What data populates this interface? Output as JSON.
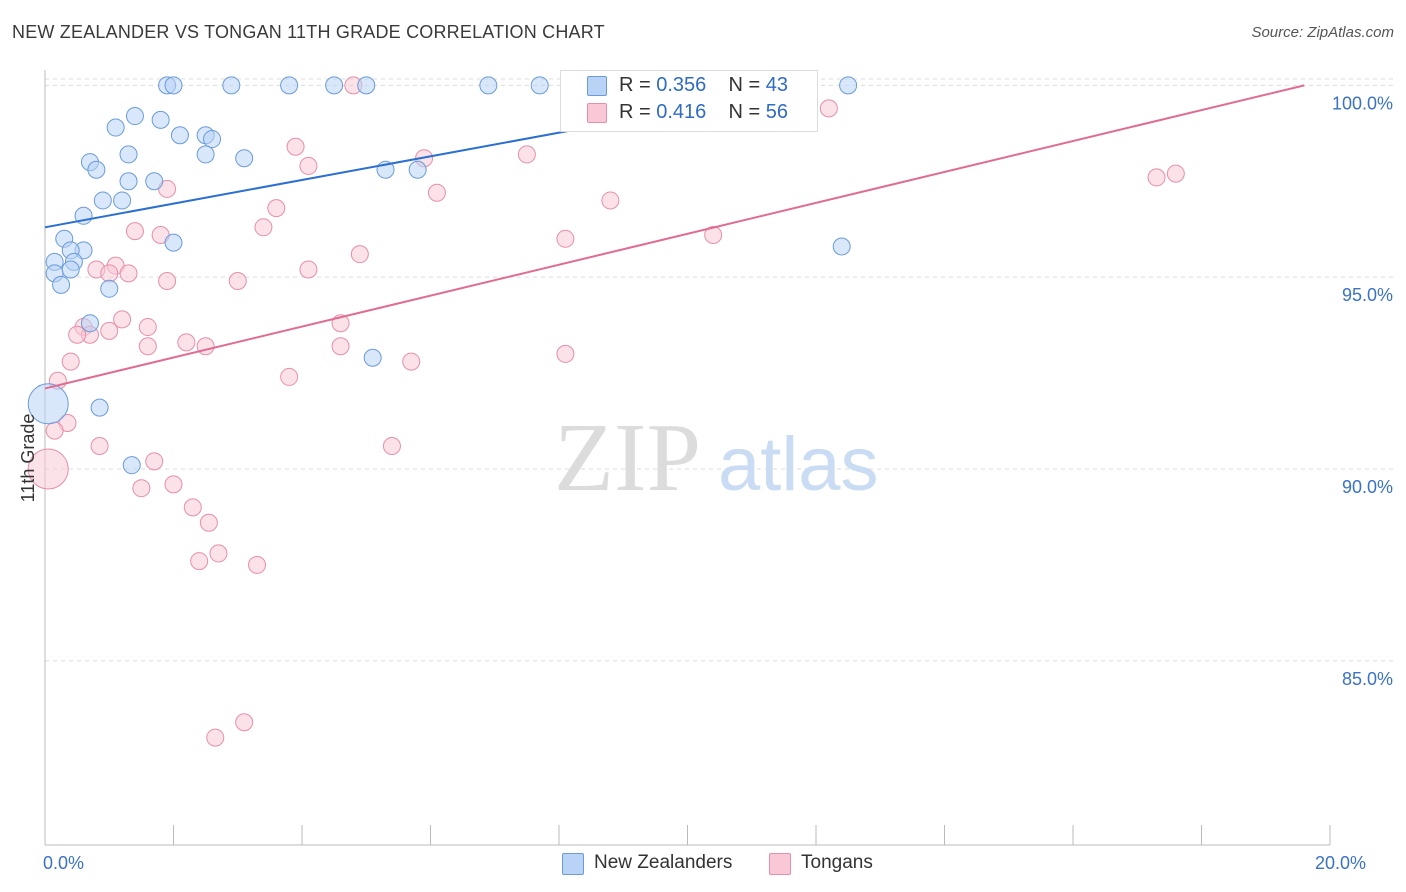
{
  "title": "NEW ZEALANDER VS TONGAN 11TH GRADE CORRELATION CHART",
  "source": "Source: ZipAtlas.com",
  "watermark": {
    "zip": "ZIP",
    "atlas": "atlas"
  },
  "legend": {
    "rows": [
      {
        "r_label": "R = ",
        "r_value": "0.356",
        "n_label": "N = ",
        "n_value": "43"
      },
      {
        "r_label": "R = ",
        "r_value": "0.416",
        "n_label": "N = ",
        "n_value": "56"
      }
    ]
  },
  "bottom_legend": {
    "blue": "New Zealanders",
    "pink": "Tongans"
  },
  "colors": {
    "blue_fill": "#b8d3f5",
    "blue_stroke": "#6b9bd8",
    "blue_line": "#2a6fd1",
    "pink_fill": "#f8c8d6",
    "pink_stroke": "#e68fa9",
    "pink_line": "#e06b93",
    "tick_label": "#3b72c4",
    "grid": "#dcdcdc"
  },
  "chart_data": {
    "type": "scatter",
    "title": "NEW ZEALANDER VS TONGAN 11TH GRADE CORRELATION CHART",
    "xlabel": "",
    "ylabel": "11th Grade",
    "xlim": [
      0,
      20
    ],
    "ylim": [
      80.2,
      100.4
    ],
    "x_tick_labels": [
      {
        "value": 0,
        "label": "0.0%"
      },
      {
        "value": 20,
        "label": "20.0%"
      }
    ],
    "y_tick_labels": [
      {
        "value": 100,
        "label": "100.0%"
      },
      {
        "value": 95,
        "label": "95.0%"
      },
      {
        "value": 90,
        "label": "90.0%"
      },
      {
        "value": 85,
        "label": "85.0%"
      }
    ],
    "series": [
      {
        "name": "New Zealanders",
        "color": "blue",
        "r": 0.356,
        "n": 43,
        "trend": {
          "x": [
            0,
            12.0
          ],
          "y": [
            96.3,
            100.0
          ]
        },
        "points": [
          [
            1.9,
            100
          ],
          [
            2.0,
            100
          ],
          [
            2.9,
            100
          ],
          [
            3.8,
            100
          ],
          [
            4.5,
            100
          ],
          [
            5.0,
            100
          ],
          [
            6.9,
            100
          ],
          [
            7.7,
            100
          ],
          [
            12.5,
            100
          ],
          [
            1.4,
            99.2
          ],
          [
            1.8,
            99.1
          ],
          [
            1.1,
            98.9
          ],
          [
            2.1,
            98.7
          ],
          [
            2.5,
            98.7
          ],
          [
            2.6,
            98.6
          ],
          [
            1.3,
            98.2
          ],
          [
            2.5,
            98.2
          ],
          [
            3.1,
            98.1
          ],
          [
            0.7,
            98.0
          ],
          [
            0.8,
            97.8
          ],
          [
            5.3,
            97.8
          ],
          [
            5.8,
            97.8
          ],
          [
            1.7,
            97.5
          ],
          [
            1.3,
            97.5
          ],
          [
            1.2,
            97.0
          ],
          [
            0.9,
            97.0
          ],
          [
            0.6,
            96.6
          ],
          [
            0.3,
            96.0
          ],
          [
            2.0,
            95.9
          ],
          [
            0.6,
            95.7
          ],
          [
            0.4,
            95.7
          ],
          [
            12.4,
            95.8
          ],
          [
            0.15,
            95.4
          ],
          [
            0.45,
            95.4
          ],
          [
            0.15,
            95.1
          ],
          [
            0.25,
            94.8
          ],
          [
            1.0,
            94.7
          ],
          [
            0.7,
            93.8
          ],
          [
            5.1,
            92.9
          ],
          [
            0.85,
            91.6
          ],
          [
            1.35,
            90.1
          ],
          [
            0.05,
            91.7
          ],
          [
            0.4,
            95.2
          ]
        ],
        "big_point": [
          0.05,
          91.7
        ]
      },
      {
        "name": "Tongans",
        "color": "pink",
        "r": 0.416,
        "n": 56,
        "trend": {
          "x": [
            0,
            19.6
          ],
          "y": [
            92.1,
            100.0
          ]
        },
        "points": [
          [
            4.8,
            100
          ],
          [
            12.2,
            99.4
          ],
          [
            3.9,
            98.4
          ],
          [
            7.5,
            98.2
          ],
          [
            5.9,
            98.1
          ],
          [
            4.1,
            97.9
          ],
          [
            1.9,
            97.3
          ],
          [
            6.1,
            97.2
          ],
          [
            17.6,
            97.7
          ],
          [
            17.3,
            97.6
          ],
          [
            8.8,
            97.0
          ],
          [
            3.6,
            96.8
          ],
          [
            3.4,
            96.3
          ],
          [
            1.4,
            96.2
          ],
          [
            1.8,
            96.1
          ],
          [
            8.1,
            96.0
          ],
          [
            10.4,
            96.1
          ],
          [
            4.9,
            95.6
          ],
          [
            1.1,
            95.3
          ],
          [
            0.8,
            95.2
          ],
          [
            1.3,
            95.1
          ],
          [
            1.0,
            95.1
          ],
          [
            4.1,
            95.2
          ],
          [
            1.9,
            94.9
          ],
          [
            3.0,
            94.9
          ],
          [
            1.2,
            93.9
          ],
          [
            4.6,
            93.8
          ],
          [
            0.6,
            93.7
          ],
          [
            1.6,
            93.7
          ],
          [
            1.0,
            93.6
          ],
          [
            0.7,
            93.5
          ],
          [
            0.5,
            93.5
          ],
          [
            2.2,
            93.3
          ],
          [
            1.6,
            93.2
          ],
          [
            2.5,
            93.2
          ],
          [
            4.6,
            93.2
          ],
          [
            8.1,
            93.0
          ],
          [
            0.4,
            92.8
          ],
          [
            5.7,
            92.8
          ],
          [
            3.8,
            92.4
          ],
          [
            0.2,
            92.3
          ],
          [
            0.35,
            91.2
          ],
          [
            0.15,
            91.0
          ],
          [
            0.85,
            90.6
          ],
          [
            5.4,
            90.6
          ],
          [
            1.7,
            90.2
          ],
          [
            2.0,
            89.6
          ],
          [
            1.5,
            89.5
          ],
          [
            2.3,
            89.0
          ],
          [
            2.55,
            88.6
          ],
          [
            2.7,
            87.8
          ],
          [
            2.4,
            87.6
          ],
          [
            3.3,
            87.5
          ],
          [
            3.1,
            83.4
          ],
          [
            2.65,
            83.0
          ],
          [
            0.05,
            90.0
          ]
        ],
        "big_point": [
          0.05,
          90.0
        ]
      }
    ]
  }
}
